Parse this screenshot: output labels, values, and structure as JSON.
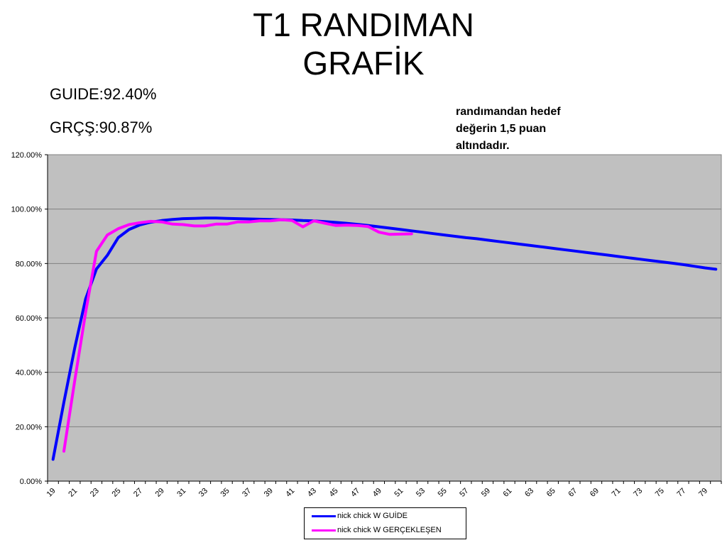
{
  "title": {
    "line1": "T1 RANDIMAN",
    "line2": "GRAFİK"
  },
  "stats": {
    "guide": "GUIDE:92.40%",
    "actual": "GRÇŞ:90.87%"
  },
  "note": " randımandan hedef\ndeğerin 1,5 puan\naltındadır.",
  "chart_data": {
    "type": "line",
    "title": "T1 RANDIMAN GRAFİK",
    "xlabel": "",
    "ylabel": "",
    "x_range": [
      19,
      80
    ],
    "ylim": [
      0,
      1.2
    ],
    "y_ticks": [
      "0.00%",
      "20.00%",
      "40.00%",
      "60.00%",
      "80.00%",
      "100.00%",
      "120.00%"
    ],
    "x_tick_labels": [
      "19",
      "21",
      "23",
      "25",
      "27",
      "29",
      "31",
      "33",
      "35",
      "37",
      "39",
      "41",
      "43",
      "45",
      "47",
      "49",
      "51",
      "53",
      "55",
      "57",
      "59",
      "61",
      "63",
      "65",
      "67",
      "69",
      "71",
      "73",
      "75",
      "77",
      "79"
    ],
    "grid": "horizontal",
    "plot_background": "#c0c0c0",
    "legend_position": "bottom",
    "series": [
      {
        "name": "nick chick W GUİDE",
        "color": "#0000ff",
        "x": [
          19,
          20,
          21,
          22,
          23,
          24,
          25,
          26,
          27,
          28,
          29,
          30,
          31,
          32,
          33,
          34,
          35,
          36,
          37,
          38,
          39,
          40,
          41,
          42,
          43,
          44,
          45,
          46,
          47,
          48,
          49,
          50,
          51,
          52,
          53,
          54,
          55,
          56,
          57,
          58,
          59,
          60,
          61,
          62,
          63,
          64,
          65,
          66,
          67,
          68,
          69,
          70,
          71,
          72,
          73,
          74,
          75,
          76,
          77,
          78,
          79,
          80
        ],
        "y": [
          0.08,
          0.29,
          0.49,
          0.67,
          0.78,
          0.83,
          0.895,
          0.925,
          0.942,
          0.952,
          0.958,
          0.962,
          0.965,
          0.966,
          0.967,
          0.967,
          0.966,
          0.965,
          0.964,
          0.963,
          0.962,
          0.961,
          0.96,
          0.958,
          0.957,
          0.954,
          0.951,
          0.948,
          0.944,
          0.94,
          0.935,
          0.93,
          0.925,
          0.92,
          0.915,
          0.91,
          0.905,
          0.9,
          0.895,
          0.891,
          0.886,
          0.881,
          0.876,
          0.871,
          0.866,
          0.861,
          0.856,
          0.851,
          0.846,
          0.841,
          0.836,
          0.831,
          0.826,
          0.821,
          0.816,
          0.811,
          0.806,
          0.801,
          0.796,
          0.79,
          0.784,
          0.779
        ]
      },
      {
        "name": "nick chick W GERÇEKLEŞEN",
        "color": "#ff00ff",
        "x": [
          20,
          21,
          22,
          23,
          24,
          25,
          26,
          27,
          28,
          29,
          30,
          31,
          32,
          33,
          34,
          35,
          36,
          37,
          38,
          39,
          40,
          41,
          42,
          43,
          44,
          45,
          46,
          47,
          48,
          49,
          50,
          51,
          52
        ],
        "y": [
          0.11,
          0.37,
          0.62,
          0.845,
          0.905,
          0.928,
          0.943,
          0.95,
          0.955,
          0.953,
          0.945,
          0.943,
          0.938,
          0.938,
          0.945,
          0.945,
          0.953,
          0.953,
          0.957,
          0.957,
          0.961,
          0.958,
          0.935,
          0.957,
          0.948,
          0.94,
          0.941,
          0.94,
          0.936,
          0.915,
          0.907,
          0.908,
          0.909
        ]
      }
    ]
  }
}
